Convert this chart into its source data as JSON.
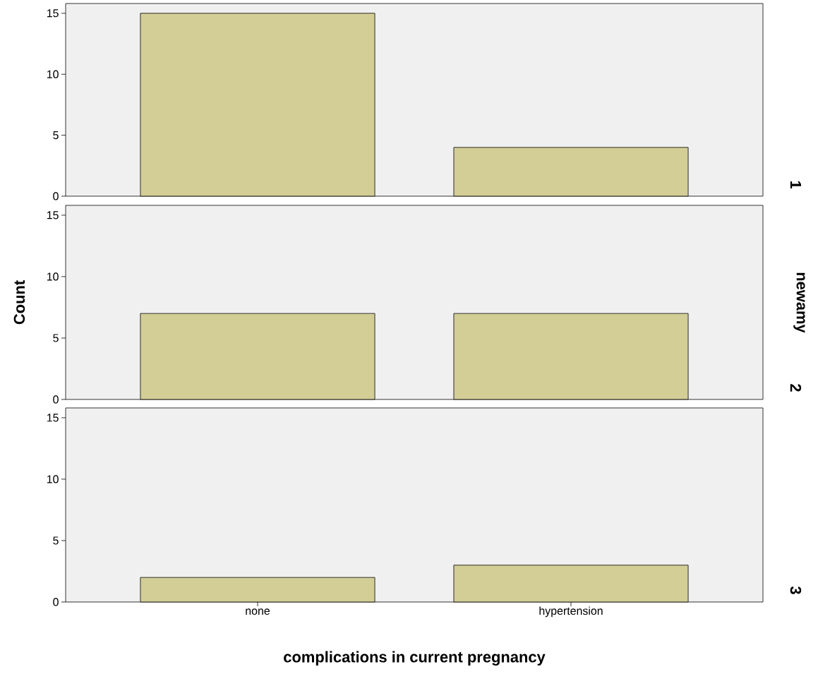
{
  "chart_data": [
    {
      "type": "bar",
      "y2label": "1",
      "categories": [
        null,
        null
      ],
      "values": [
        15,
        4
      ],
      "color": "#d3cd96",
      "ylim": [
        0,
        15.8
      ],
      "yticks": [
        0,
        5,
        10,
        15
      ],
      "tick_labels": "y"
    },
    {
      "type": "bar",
      "y2label": "2",
      "ylabel": "Count",
      "annotations": [
        "newamy"
      ],
      "categories": [
        null,
        null
      ],
      "values": [
        7,
        7
      ],
      "color": "#d3cd96",
      "ylim": [
        0,
        15.8
      ],
      "yticks": [
        0,
        5,
        10,
        15
      ],
      "tick_labels": "y"
    },
    {
      "type": "bar",
      "y2label": "3",
      "xlabel": "complications in current pregnancy",
      "categories": [
        "none",
        "hypertension"
      ],
      "values": [
        2,
        3
      ],
      "color": "#d3cd96",
      "ylim": [
        0,
        15.8
      ],
      "yticks": [
        0,
        5,
        10,
        15
      ]
    }
  ]
}
